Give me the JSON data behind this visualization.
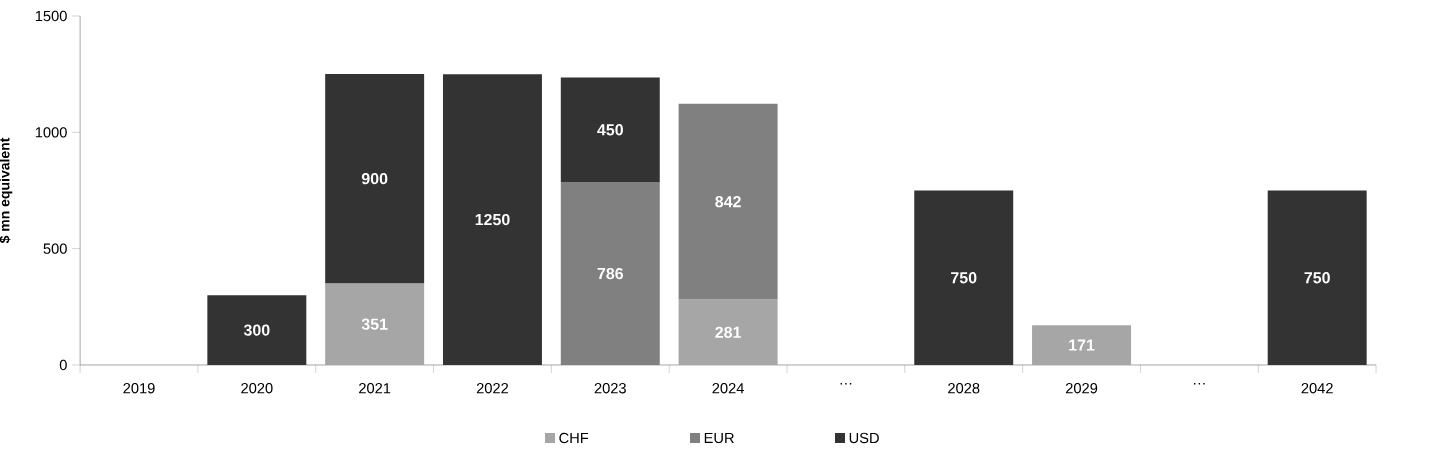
{
  "chart_data": {
    "type": "bar",
    "stacked": true,
    "ylabel": "$ mn equivalent",
    "categories": [
      "2019",
      "2020",
      "2021",
      "2022",
      "2023",
      "2024",
      "…",
      "2028",
      "2029",
      "…",
      "2042"
    ],
    "series": [
      {
        "name": "CHF",
        "color": "#a6a6a6",
        "values": [
          null,
          null,
          351,
          null,
          null,
          281,
          null,
          null,
          171,
          null,
          null
        ]
      },
      {
        "name": "EUR",
        "color": "#808080",
        "values": [
          null,
          null,
          null,
          null,
          786,
          842,
          null,
          null,
          null,
          null,
          null
        ]
      },
      {
        "name": "USD",
        "color": "#333333",
        "values": [
          null,
          300,
          900,
          1250,
          450,
          null,
          null,
          750,
          null,
          null,
          750
        ]
      }
    ],
    "ylim": [
      0,
      1500
    ],
    "yticks": [
      0,
      500,
      1000,
      1500
    ],
    "data_labels": true,
    "legend": "bottom"
  }
}
